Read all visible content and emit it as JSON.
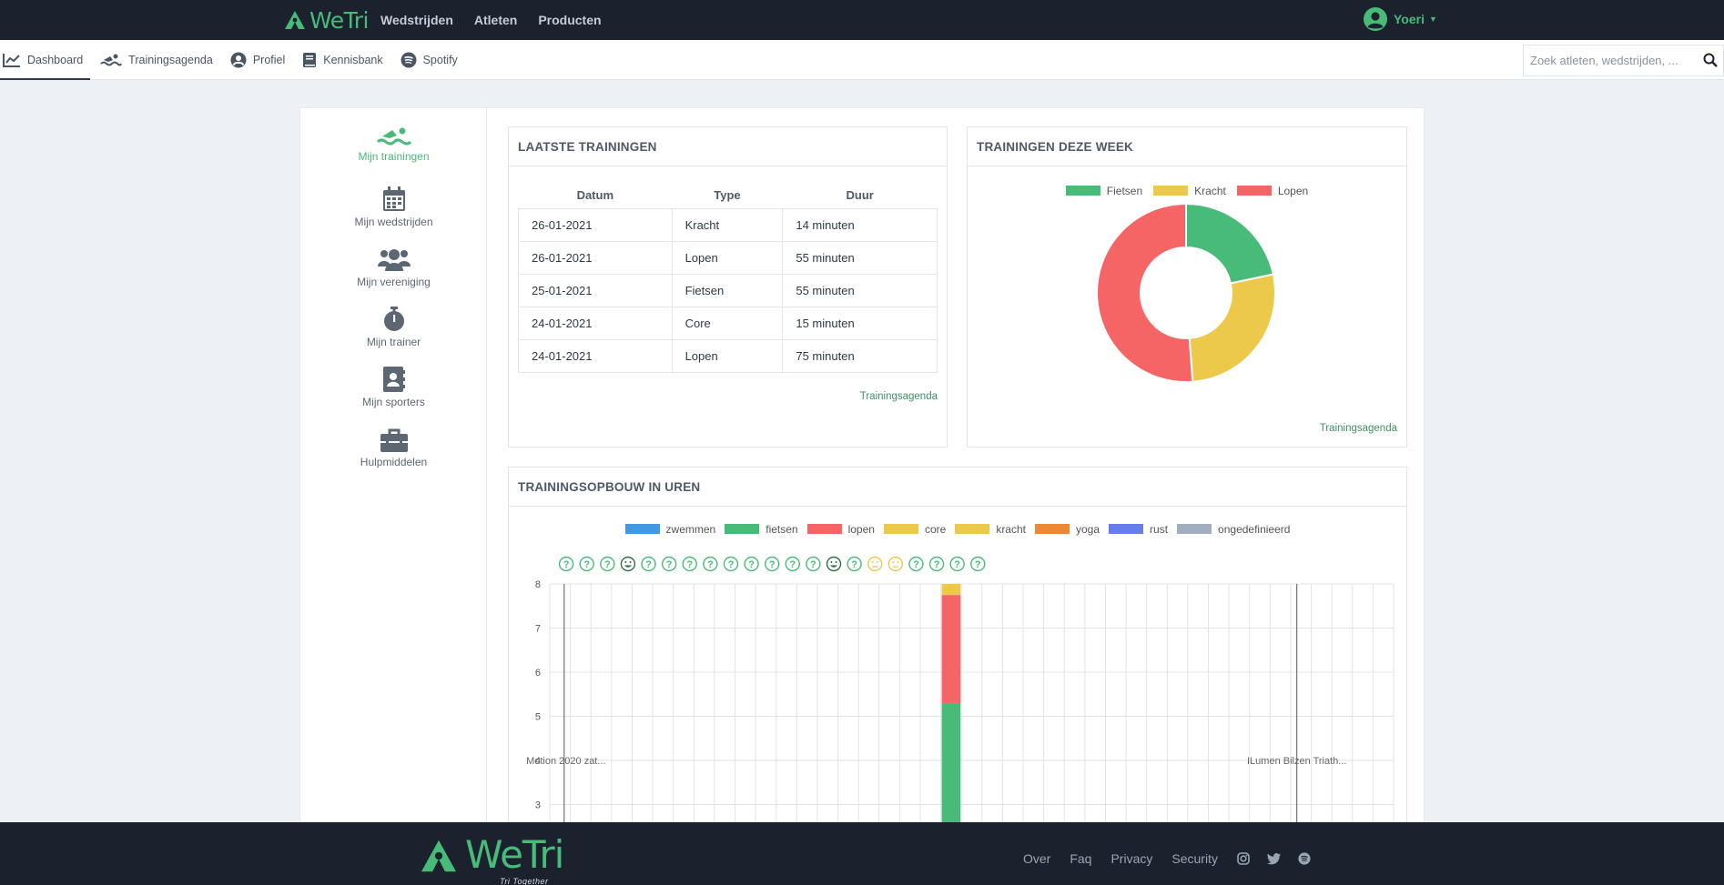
{
  "brand": {
    "name": "WeTri",
    "tagline": "Tri Together"
  },
  "topnav": {
    "items": [
      "Wedstrijden",
      "Atleten",
      "Producten"
    ]
  },
  "user": {
    "name": "Yoeri"
  },
  "subnav": {
    "items": [
      {
        "label": "Dashboard",
        "icon": "chart-line-icon"
      },
      {
        "label": "Trainingsagenda",
        "icon": "swimmer-icon"
      },
      {
        "label": "Profiel",
        "icon": "user-circle-icon"
      },
      {
        "label": "Kennisbank",
        "icon": "book-icon"
      },
      {
        "label": "Spotify",
        "icon": "spotify-icon"
      }
    ],
    "active": "Dashboard"
  },
  "search": {
    "placeholder": "Zoek atleten, wedstrijden, ..."
  },
  "sidebar": {
    "items": [
      {
        "label": "Mijn trainingen",
        "icon": "swimmer-icon"
      },
      {
        "label": "Mijn wedstrijden",
        "icon": "calendar-icon"
      },
      {
        "label": "Mijn vereniging",
        "icon": "users-icon"
      },
      {
        "label": "Mijn trainer",
        "icon": "stopwatch-icon"
      },
      {
        "label": "Mijn sporters",
        "icon": "address-book-icon"
      },
      {
        "label": "Hulpmiddelen",
        "icon": "toolbox-icon"
      }
    ]
  },
  "latest": {
    "title": "LAATSTE TRAININGEN",
    "columns": [
      "Datum",
      "Type",
      "Duur"
    ],
    "rows": [
      [
        "26-01-2021",
        "Kracht",
        "14 minuten"
      ],
      [
        "26-01-2021",
        "Lopen",
        "55 minuten"
      ],
      [
        "25-01-2021",
        "Fietsen",
        "55 minuten"
      ],
      [
        "24-01-2021",
        "Core",
        "15 minuten"
      ],
      [
        "24-01-2021",
        "Lopen",
        "75 minuten"
      ]
    ],
    "link": "Trainingsagenda"
  },
  "week": {
    "title": "TRAININGEN DEZE WEEK",
    "link": "Trainingsagenda"
  },
  "build": {
    "title": "TRAININGSOPBOUW IN UREN",
    "mood_icons": [
      "?",
      "?",
      "?",
      "happy",
      "?",
      "?",
      "?",
      "?",
      "?",
      "?",
      "?",
      "?",
      "?",
      "happy",
      "?",
      "neutral",
      "neutral",
      "?",
      "?",
      "?",
      "?"
    ],
    "annotations": [
      "Motion 2020 zat...",
      "ILumen Bilzen Triath..."
    ]
  },
  "colors": {
    "green": "#48bb78",
    "yellow": "#ecc94b",
    "red": "#f56565",
    "blue": "#4299e1",
    "orange": "#ed8936",
    "indigo": "#667eea",
    "gray": "#a0aec0",
    "navbar": "#1b222e"
  },
  "chart_data": [
    {
      "type": "pie",
      "variant": "donut",
      "labels": [
        "Fietsen",
        "Kracht",
        "Lopen"
      ],
      "values": [
        55,
        69,
        130
      ],
      "colors": [
        "#48bb78",
        "#ecc94b",
        "#f56565"
      ],
      "legend": "top"
    },
    {
      "type": "bar",
      "stacked": true,
      "series": [
        {
          "name": "zwemmen",
          "color": "#4299e1"
        },
        {
          "name": "fietsen",
          "color": "#48bb78"
        },
        {
          "name": "lopen",
          "color": "#f56565"
        },
        {
          "name": "core",
          "color": "#ecc94b"
        },
        {
          "name": "kracht",
          "color": "#ecc94b"
        },
        {
          "name": "yoga",
          "color": "#ed8936"
        },
        {
          "name": "rust",
          "color": "#667eea"
        },
        {
          "name": "ongedefinieerd",
          "color": "#a0aec0"
        }
      ],
      "yticks": [
        3,
        4,
        5,
        6,
        7,
        8
      ],
      "ylim_visible": [
        2.3,
        8
      ],
      "column_count": 41,
      "highlight_column": 19,
      "highlight_stack": [
        {
          "series": "fietsen",
          "value": 5.3
        },
        {
          "series": "lopen",
          "value": 2.45
        },
        {
          "series": "kracht",
          "value": 0.25
        }
      ],
      "vertical_markers_at_columns": [
        0.7,
        36.3
      ],
      "grid": true,
      "legend": "top"
    }
  ]
}
